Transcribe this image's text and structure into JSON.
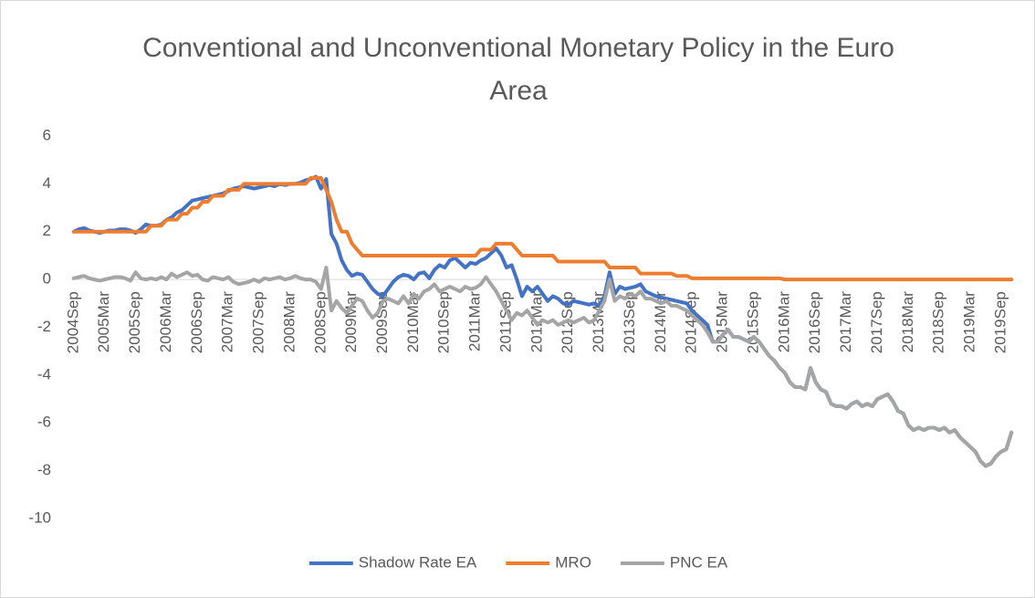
{
  "chart_data": {
    "type": "line",
    "title": "Conventional and Unconventional Monetary Policy in the Euro Area",
    "categories": [
      "2004Sep",
      null,
      null,
      null,
      null,
      null,
      "2005Mar",
      null,
      null,
      null,
      null,
      null,
      "2005Sep",
      null,
      null,
      null,
      null,
      null,
      "2006Mar",
      null,
      null,
      null,
      null,
      null,
      "2006Sep",
      null,
      null,
      null,
      null,
      null,
      "2007Mar",
      null,
      null,
      null,
      null,
      null,
      "2007Sep",
      null,
      null,
      null,
      null,
      null,
      "2008Mar",
      null,
      null,
      null,
      null,
      null,
      "2008Sep",
      null,
      null,
      null,
      null,
      null,
      "2009Mar",
      null,
      null,
      null,
      null,
      null,
      "2009Sep",
      null,
      null,
      null,
      null,
      null,
      "2010Mar",
      null,
      null,
      null,
      null,
      null,
      "2010Sep",
      null,
      null,
      null,
      null,
      null,
      "2011Mar",
      null,
      null,
      null,
      null,
      null,
      "2011Sep",
      null,
      null,
      null,
      null,
      null,
      "2012Mar",
      null,
      null,
      null,
      null,
      null,
      "2012Sep",
      null,
      null,
      null,
      null,
      null,
      "2013Mar",
      null,
      null,
      null,
      null,
      null,
      "2013Sep",
      null,
      null,
      null,
      null,
      null,
      "2014Mar",
      null,
      null,
      null,
      null,
      null,
      "2014Sep",
      null,
      null,
      null,
      null,
      null,
      "2015Mar",
      null,
      null,
      null,
      null,
      null,
      "2015Sep",
      null,
      null,
      null,
      null,
      null,
      "2016Mar",
      null,
      null,
      null,
      null,
      null,
      "2016Sep",
      null,
      null,
      null,
      null,
      null,
      "2017Mar",
      null,
      null,
      null,
      null,
      null,
      "2017Sep",
      null,
      null,
      null,
      null,
      null,
      "2018Mar",
      null,
      null,
      null,
      null,
      null,
      "2018Sep",
      null,
      null,
      null,
      null,
      null,
      "2019Mar",
      null,
      null,
      null,
      null,
      null,
      "2019Sep",
      null,
      null
    ],
    "series": [
      {
        "name": "Shadow Rate EA",
        "color": "#4472c4",
        "values": [
          2.0,
          2.1,
          2.15,
          2.05,
          2.0,
          1.95,
          2.0,
          2.05,
          2.05,
          2.1,
          2.1,
          2.05,
          1.95,
          2.1,
          2.3,
          2.25,
          2.25,
          2.3,
          2.5,
          2.6,
          2.8,
          2.9,
          3.1,
          3.3,
          3.35,
          3.4,
          3.45,
          3.5,
          3.55,
          3.6,
          3.7,
          3.8,
          3.85,
          3.9,
          3.85,
          3.8,
          3.85,
          3.9,
          3.95,
          3.9,
          4.0,
          3.95,
          4.0,
          4.0,
          4.05,
          4.15,
          4.2,
          4.3,
          3.8,
          4.2,
          1.9,
          1.5,
          0.8,
          0.4,
          0.15,
          0.25,
          0.2,
          -0.1,
          -0.4,
          -0.6,
          -0.7,
          -0.4,
          -0.1,
          0.1,
          0.2,
          0.15,
          0.0,
          0.25,
          0.3,
          0.05,
          0.4,
          0.6,
          0.5,
          0.8,
          0.9,
          0.7,
          0.5,
          0.7,
          0.65,
          0.8,
          0.9,
          1.1,
          1.3,
          1.0,
          0.5,
          0.6,
          0.0,
          -0.7,
          -0.3,
          -0.5,
          -0.3,
          -0.6,
          -0.9,
          -0.7,
          -0.8,
          -1.0,
          -1.05,
          -0.9,
          -0.95,
          -1.0,
          -1.05,
          -1.0,
          -1.1,
          -0.7,
          0.3,
          -0.6,
          -0.3,
          -0.4,
          -0.35,
          -0.3,
          -0.2,
          -0.5,
          -0.6,
          -0.7,
          -0.75,
          -0.8,
          -0.85,
          -0.9,
          -0.95,
          -1.0,
          -1.3,
          -1.5,
          -1.7,
          -1.9,
          -2.6,
          -2.6,
          -2.3,
          -2.1,
          -2.4,
          -2.4,
          -2.5,
          -2.6,
          -2.4,
          -2.6,
          -2.9,
          -3.2,
          -3.4,
          -3.7,
          -3.9,
          -4.3,
          -4.5,
          -4.5,
          -4.6,
          -3.7,
          -4.3,
          -4.6,
          -4.7,
          -5.2,
          -5.3,
          -5.3,
          -5.4,
          -5.2,
          -5.1,
          -5.3,
          -5.2,
          -5.3,
          -5.0,
          -4.9,
          -4.8,
          -5.1,
          -5.5,
          -5.6,
          -6.1,
          -6.3,
          -6.2,
          -6.3,
          -6.2,
          -6.2,
          -6.3,
          -6.2,
          -6.4,
          -6.3,
          -6.6,
          -6.8,
          -7.0,
          -7.2,
          -7.6,
          -7.8,
          -7.7,
          -7.4,
          -7.2,
          -7.1,
          -6.4
        ]
      },
      {
        "name": "MRO",
        "color": "#ed7d31",
        "values": [
          2,
          2,
          2,
          2,
          2,
          2,
          2,
          2,
          2,
          2,
          2,
          2,
          2,
          2,
          2,
          2.25,
          2.25,
          2.25,
          2.5,
          2.5,
          2.5,
          2.75,
          2.75,
          3,
          3,
          3.25,
          3.25,
          3.5,
          3.5,
          3.5,
          3.75,
          3.75,
          3.75,
          4,
          4,
          4,
          4,
          4,
          4,
          4,
          4,
          4,
          4,
          4,
          4,
          4,
          4.25,
          4.25,
          4.25,
          3.75,
          3.25,
          2.5,
          2,
          2,
          1.5,
          1.25,
          1,
          1,
          1,
          1,
          1,
          1,
          1,
          1,
          1,
          1,
          1,
          1,
          1,
          1,
          1,
          1,
          1,
          1,
          1,
          1,
          1,
          1,
          1,
          1.25,
          1.25,
          1.25,
          1.5,
          1.5,
          1.5,
          1.5,
          1.25,
          1,
          1,
          1,
          1,
          1,
          1,
          1,
          0.75,
          0.75,
          0.75,
          0.75,
          0.75,
          0.75,
          0.75,
          0.75,
          0.75,
          0.75,
          0.5,
          0.5,
          0.5,
          0.5,
          0.5,
          0.5,
          0.25,
          0.25,
          0.25,
          0.25,
          0.25,
          0.25,
          0.25,
          0.15,
          0.15,
          0.15,
          0.05,
          0.05,
          0.05,
          0.05,
          0.05,
          0.05,
          0.05,
          0.05,
          0.05,
          0.05,
          0.05,
          0.05,
          0.05,
          0.05,
          0.05,
          0.05,
          0.05,
          0.05,
          0,
          0,
          0,
          0,
          0,
          0,
          0,
          0,
          0,
          0,
          0,
          0,
          0,
          0,
          0,
          0,
          0,
          0,
          0,
          0,
          0,
          0,
          0,
          0,
          0,
          0,
          0,
          0,
          0,
          0,
          0,
          0,
          0,
          0,
          0,
          0,
          0,
          0,
          0,
          0,
          0,
          0,
          0,
          0,
          0
        ]
      },
      {
        "name": "PNC EA",
        "color": "#a5a5a5",
        "values": [
          0.05,
          0.1,
          0.15,
          0.05,
          0.0,
          -0.05,
          0.0,
          0.05,
          0.1,
          0.1,
          0.05,
          -0.05,
          0.3,
          0.05,
          0.0,
          0.05,
          0.0,
          0.1,
          0.0,
          0.25,
          0.1,
          0.2,
          0.3,
          0.15,
          0.2,
          0.0,
          -0.05,
          0.1,
          0.05,
          0.0,
          0.1,
          -0.1,
          -0.2,
          -0.15,
          -0.1,
          0.0,
          -0.1,
          0.05,
          0.0,
          0.05,
          0.1,
          0.0,
          0.05,
          0.15,
          0.05,
          0.0,
          0.0,
          -0.1,
          -0.4,
          0.5,
          -1.3,
          -0.9,
          -1.2,
          -1.4,
          -1.1,
          -0.8,
          -0.9,
          -1.3,
          -1.6,
          -1.4,
          -0.9,
          -0.8,
          -0.9,
          -1.0,
          -0.7,
          -1.0,
          -0.6,
          -0.8,
          -0.5,
          -0.4,
          -0.2,
          -0.5,
          -0.4,
          -0.3,
          -0.4,
          -0.5,
          -0.3,
          -0.4,
          -0.35,
          -0.2,
          0.1,
          -0.2,
          -0.5,
          -0.9,
          -1.3,
          -1.7,
          -1.4,
          -1.5,
          -1.3,
          -1.6,
          -1.9,
          -1.7,
          -1.8,
          -1.7,
          -1.9,
          -1.8,
          -1.7,
          -1.8,
          -1.7,
          -1.6,
          -1.8,
          -1.7,
          -1.3,
          -0.9,
          0.0,
          -0.9,
          -0.7,
          -0.8,
          -0.6,
          -0.7,
          -0.5,
          -0.8,
          -0.8,
          -0.9,
          -1.0,
          -0.9,
          -1.1,
          -1.1,
          -1.2,
          -1.3,
          -1.5,
          -1.7,
          -1.9,
          -2.2,
          -2.6,
          -2.6,
          -2.3,
          -2.1,
          -2.4,
          -2.4,
          -2.5,
          -2.6,
          -2.4,
          -2.6,
          -2.9,
          -3.2,
          -3.4,
          -3.7,
          -3.9,
          -4.3,
          -4.5,
          -4.5,
          -4.6,
          -3.7,
          -4.3,
          -4.6,
          -4.7,
          -5.2,
          -5.3,
          -5.3,
          -5.4,
          -5.2,
          -5.1,
          -5.3,
          -5.2,
          -5.3,
          -5.0,
          -4.9,
          -4.8,
          -5.1,
          -5.5,
          -5.6,
          -6.1,
          -6.3,
          -6.2,
          -6.3,
          -6.2,
          -6.2,
          -6.3,
          -6.2,
          -6.4,
          -6.3,
          -6.6,
          -6.8,
          -7.0,
          -7.2,
          -7.6,
          -7.8,
          -7.7,
          -7.4,
          -7.2,
          -7.1,
          -6.4
        ]
      }
    ],
    "ylim": [
      -10,
      6
    ],
    "yticks": [
      -10,
      -8,
      -6,
      -4,
      -2,
      0,
      2,
      4,
      6
    ],
    "grid": false,
    "legend": "bottom"
  }
}
